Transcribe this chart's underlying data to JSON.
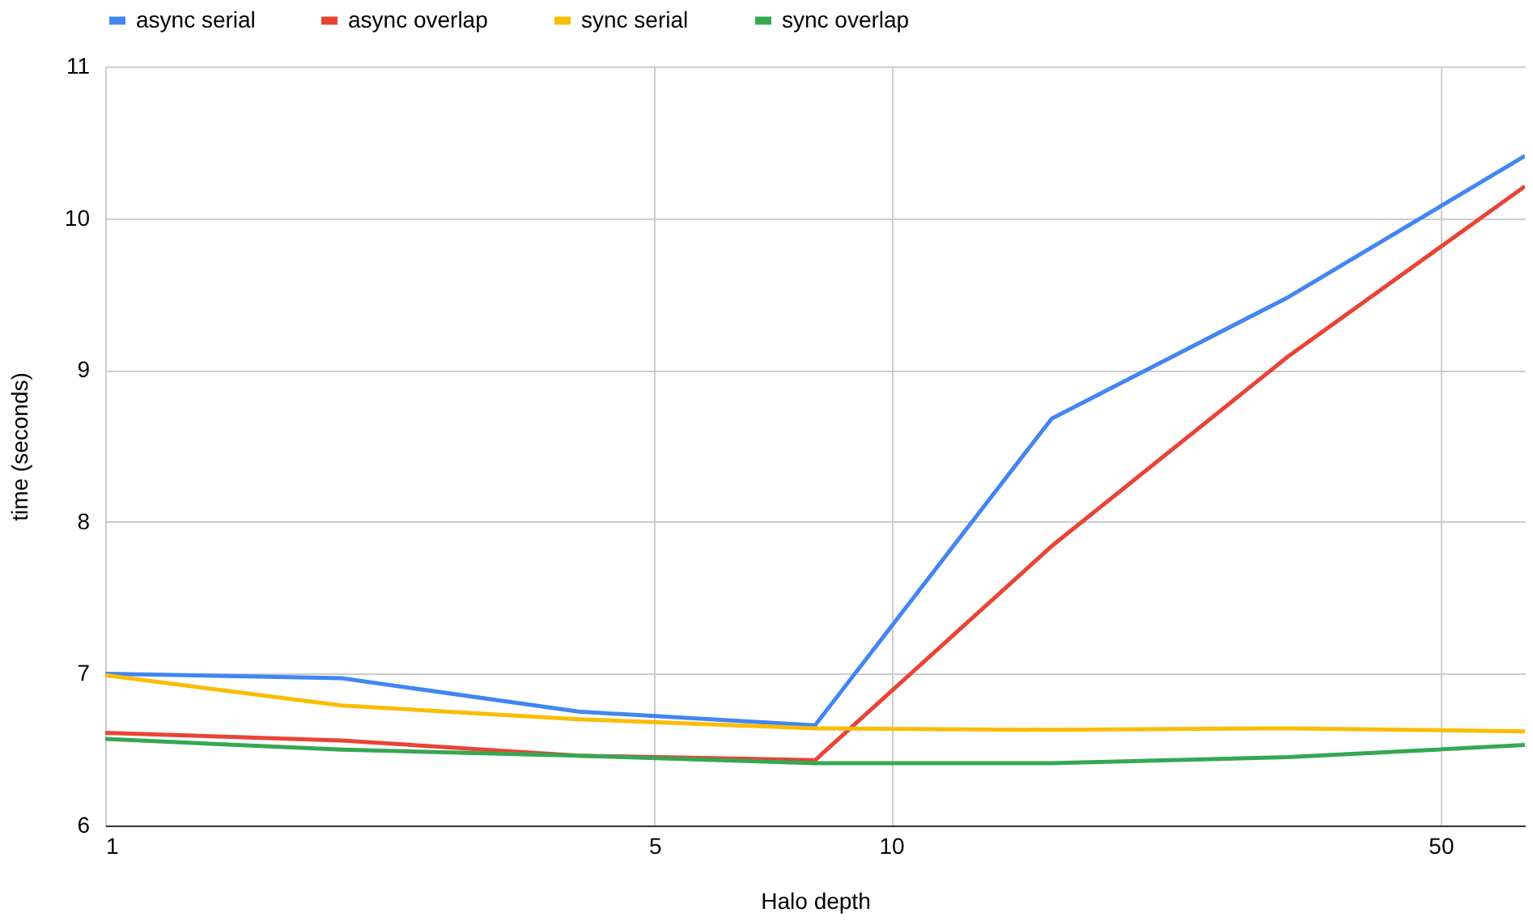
{
  "chart_data": {
    "type": "line",
    "xlabel": "Halo depth",
    "ylabel": "time (seconds)",
    "x": [
      1,
      2,
      4,
      8,
      16,
      32,
      64
    ],
    "series": [
      {
        "name": "async serial",
        "color": "#4285f4",
        "values": [
          7.0,
          6.97,
          6.75,
          6.66,
          8.68,
          9.48,
          10.41
        ]
      },
      {
        "name": "async overlap",
        "color": "#ea4335",
        "values": [
          6.61,
          6.56,
          6.46,
          6.43,
          7.84,
          9.09,
          10.21
        ]
      },
      {
        "name": "sync serial",
        "color": "#fbbc04",
        "values": [
          6.99,
          6.79,
          6.7,
          6.64,
          6.63,
          6.64,
          6.62
        ]
      },
      {
        "name": "sync overlap",
        "color": "#34a853",
        "values": [
          6.57,
          6.5,
          6.46,
          6.41,
          6.41,
          6.45,
          6.53
        ]
      }
    ],
    "xlim": [
      1,
      64
    ],
    "xticks": [
      1,
      5,
      10,
      50
    ],
    "ylim": [
      6,
      11
    ],
    "yticks": [
      6,
      7,
      8,
      9,
      10,
      11
    ],
    "log": "x",
    "grid": true,
    "legend": "top",
    "marker": "none",
    "line_style": "solid"
  }
}
